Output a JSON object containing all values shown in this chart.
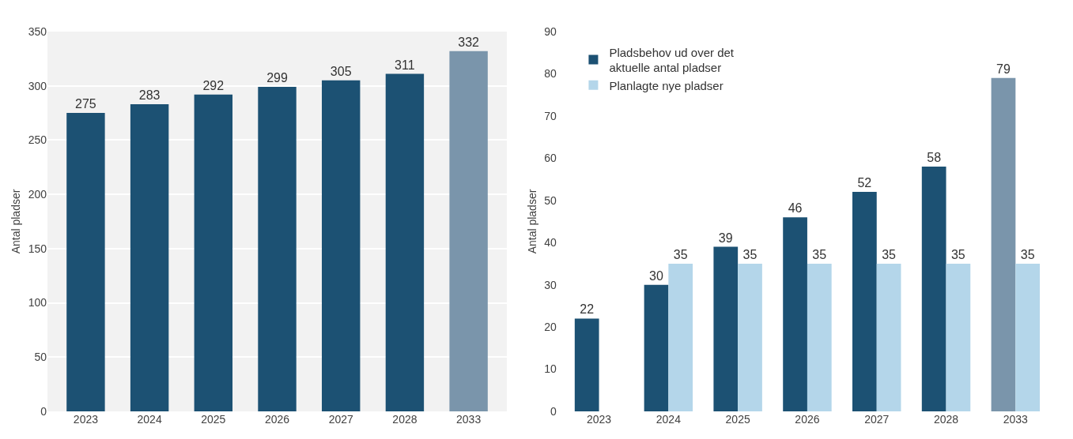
{
  "chart_data": [
    {
      "type": "bar",
      "ylabel": "Antal pladser",
      "categories": [
        "2023",
        "2024",
        "2025",
        "2026",
        "2027",
        "2028",
        "2033"
      ],
      "values": [
        275,
        283,
        292,
        299,
        305,
        311,
        332
      ],
      "colors": [
        "#1c5173",
        "#1c5173",
        "#1c5173",
        "#1c5173",
        "#1c5173",
        "#1c5173",
        "#7a95ab"
      ],
      "ylim": [
        0,
        350
      ],
      "yticks": [
        0,
        50,
        100,
        150,
        200,
        250,
        300,
        350
      ],
      "grid": "y",
      "data_labels": true
    },
    {
      "type": "bar",
      "ylabel": "Antal pladser",
      "categories": [
        "2023",
        "2024",
        "2025",
        "2026",
        "2027",
        "2028",
        "2033"
      ],
      "series": [
        {
          "name": "Pladsbehov ud over det aktuelle antal pladser",
          "colors": [
            "#1c5173",
            "#1c5173",
            "#1c5173",
            "#1c5173",
            "#1c5173",
            "#1c5173",
            "#7a95ab"
          ],
          "values": [
            22,
            30,
            39,
            46,
            52,
            58,
            79
          ]
        },
        {
          "name": "Planlagte nye pladser",
          "color": "#b4d6ea",
          "values": [
            null,
            35,
            35,
            35,
            35,
            35,
            35
          ]
        }
      ],
      "ylim": [
        0,
        90
      ],
      "yticks": [
        0,
        10,
        20,
        30,
        40,
        50,
        60,
        70,
        80,
        90
      ],
      "data_labels": true,
      "legend": "top left"
    }
  ]
}
